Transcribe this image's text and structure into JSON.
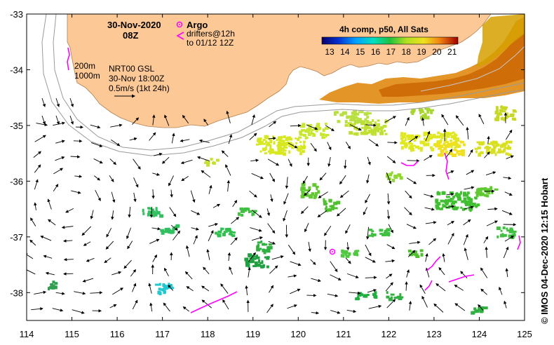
{
  "map": {
    "date": "30-Nov-2020",
    "time": "08Z",
    "argo_label": "Argo",
    "drifters_line1": "drifters@12h",
    "drifters_line2": "to 01/12 12Z",
    "contour_200": "200m",
    "contour_1000": "1000m",
    "product_line1": "NRT00 GSL",
    "product_line2": "30-Nov 18:00Z",
    "scale_label": "0.5m/s (1kt 24h)",
    "colorbar_title": "4h comp, p50, All Sats",
    "colorbar_ticks": [
      "13",
      "14",
      "15",
      "16",
      "17",
      "18",
      "19",
      "20",
      "21"
    ],
    "credit": "© IMOS 04-Dec-2020 12:15 Hobart",
    "lon_ticks": [
      "114",
      "115",
      "116",
      "117",
      "118",
      "119",
      "120",
      "121",
      "122",
      "123",
      "124",
      "125"
    ],
    "lat_ticks": [
      "-33",
      "-34",
      "-35",
      "-36",
      "-37",
      "-38"
    ],
    "lon_range": [
      114,
      125
    ],
    "lat_range": [
      -38.5,
      -33
    ],
    "colors": {
      "land": "#fcc896",
      "argo": "#ff00ff",
      "drifter": "#ff00ff",
      "isobath": "#9a9a9a"
    }
  }
}
